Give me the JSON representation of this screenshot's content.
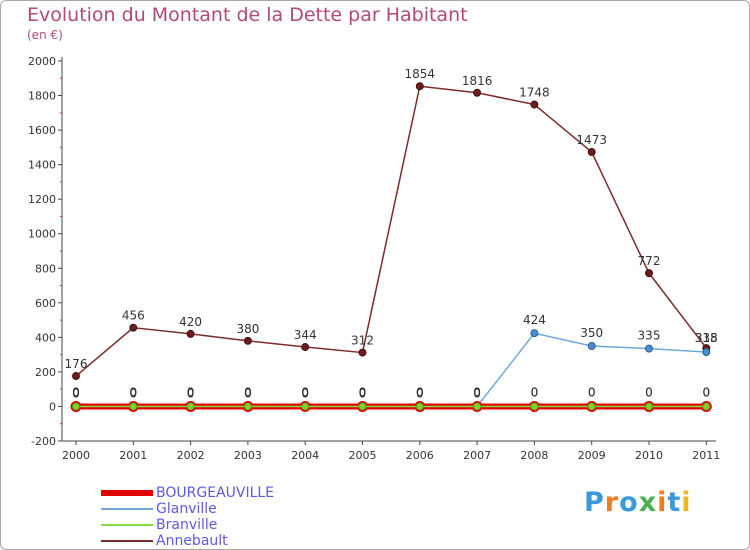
{
  "title": "Evolution du Montant de la Dette par Habitant",
  "subtitle": "(en €)",
  "chart_data": {
    "type": "line",
    "title": "Evolution du Montant de la Dette par Habitant",
    "subtitle": "(en €)",
    "x": [
      "2000",
      "2001",
      "2002",
      "2003",
      "2004",
      "2005",
      "2006",
      "2007",
      "2008",
      "2009",
      "2010",
      "2011"
    ],
    "ylim": [
      -200,
      2000
    ],
    "yticks": [
      "-200",
      "0",
      "200",
      "400",
      "600",
      "800",
      "1000",
      "1200",
      "1400",
      "1600",
      "1800",
      "2000"
    ],
    "grid": false,
    "legend_position": "bottom-left",
    "series": [
      {
        "name": "BOURGEAUVILLE",
        "color": "#e00000",
        "values": [
          0,
          0,
          0,
          0,
          0,
          0,
          0,
          0,
          0,
          0,
          0,
          0
        ],
        "labels": [
          "0",
          "0",
          "0",
          "0",
          "0",
          "0",
          "0",
          "0",
          "0",
          "0",
          "0",
          "0"
        ]
      },
      {
        "name": "Glanville",
        "color": "#6fa8dc",
        "values": [
          0,
          0,
          0,
          0,
          0,
          0,
          0,
          0,
          424,
          350,
          335,
          315
        ],
        "labels": [
          "0",
          "0",
          "0",
          "0",
          "0",
          "0",
          "0",
          "0",
          "424",
          "350",
          "335",
          "315"
        ]
      },
      {
        "name": "Branville",
        "color": "#88dd44",
        "values": [
          0,
          0,
          0,
          0,
          0,
          0,
          0,
          0,
          0,
          0,
          0,
          0
        ],
        "labels": [
          "0",
          "0",
          "0",
          "0",
          "0",
          "0",
          "0",
          "0",
          "0",
          "0",
          "0",
          "0"
        ]
      },
      {
        "name": "Annebault",
        "color": "#7b2c2c",
        "values": [
          176,
          456,
          420,
          380,
          344,
          312,
          1854,
          1816,
          1748,
          1473,
          772,
          338
        ],
        "labels": [
          "176",
          "456",
          "420",
          "380",
          "344",
          "312",
          "1854",
          "1816",
          "1748",
          "1473",
          "772",
          "338"
        ]
      }
    ]
  },
  "logo": {
    "text": "Proxiti",
    "colors": [
      "#3a9ad9",
      "#f07c1f",
      "#3a9ad9",
      "#4caf50",
      "#f07c1f",
      "#3a9ad9",
      "#f0b81f"
    ]
  }
}
